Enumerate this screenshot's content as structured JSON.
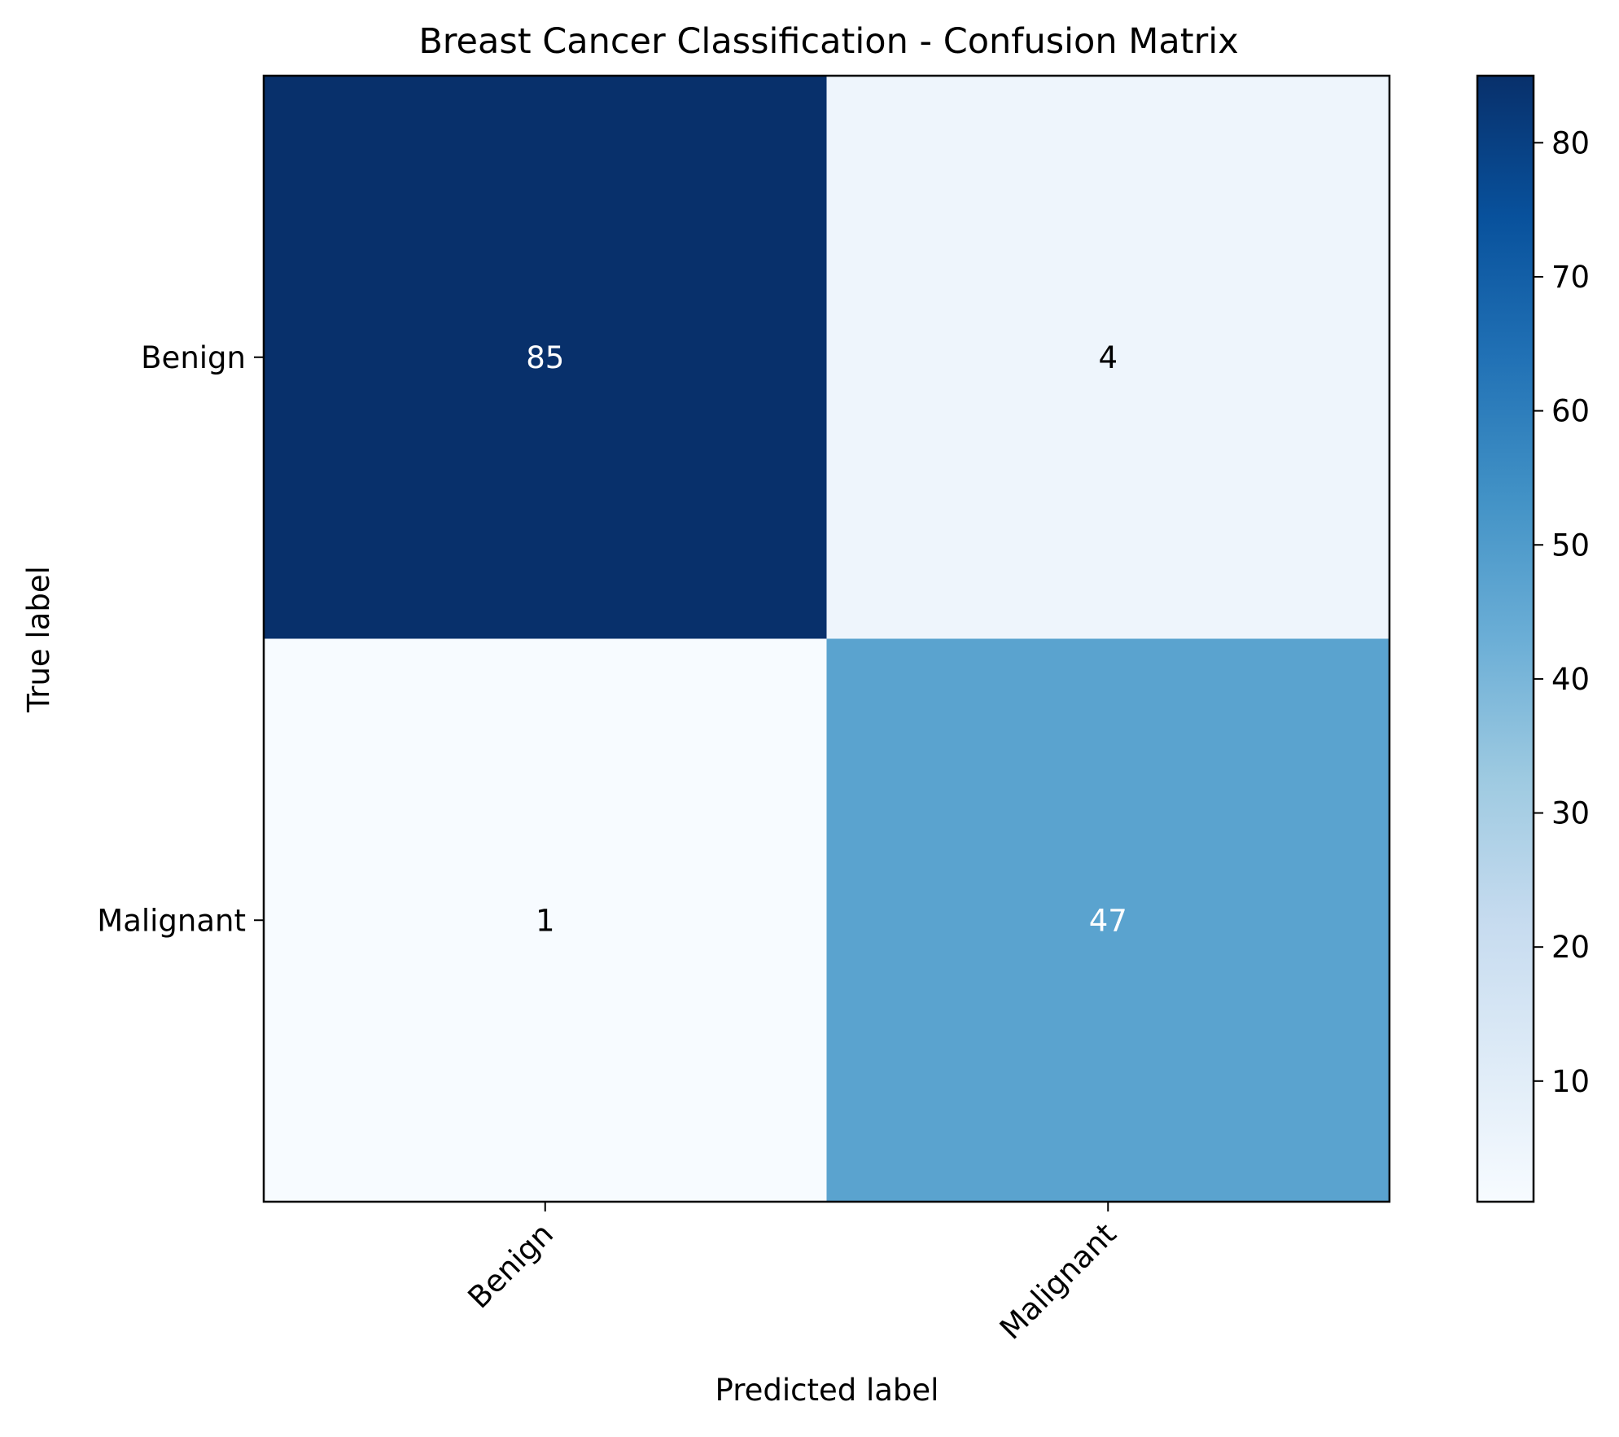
{
  "chart_data": {
    "type": "heatmap",
    "title": "Breast Cancer Classification - Confusion Matrix",
    "xlabel": "Predicted label",
    "ylabel": "True label",
    "x_categories": [
      "Benign",
      "Malignant"
    ],
    "y_categories": [
      "Benign",
      "Malignant"
    ],
    "matrix": [
      [
        85,
        4
      ],
      [
        1,
        47
      ]
    ],
    "colormap": "Blues",
    "color_range": [
      1,
      85
    ],
    "colorbar_ticks": [
      10,
      20,
      30,
      40,
      50,
      60,
      70,
      80
    ],
    "cell_colors": [
      [
        "#08306b",
        "#eef5fc"
      ],
      [
        "#f7fbff",
        "#5aa3cf"
      ]
    ],
    "text_colors": [
      [
        "#ffffff",
        "#000000"
      ],
      [
        "#000000",
        "#ffffff"
      ]
    ],
    "grid": false
  }
}
